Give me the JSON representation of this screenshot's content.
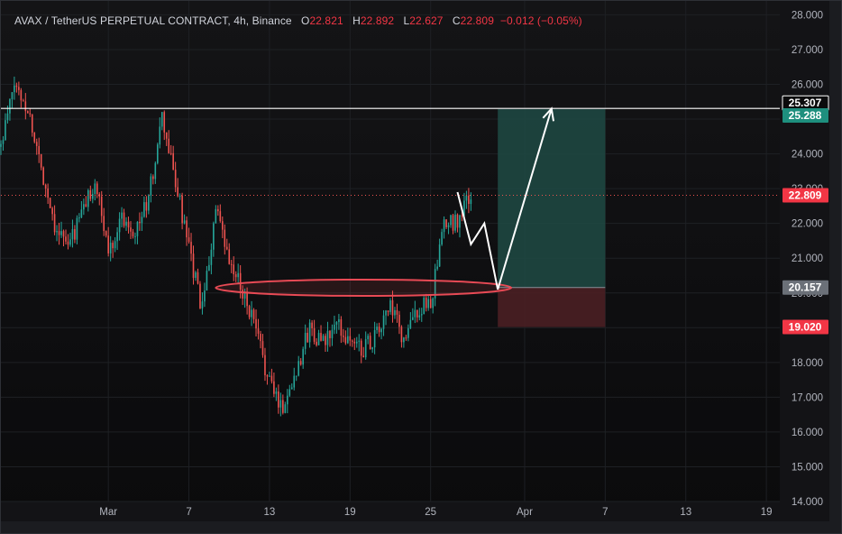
{
  "header": {
    "symbol": "AVAX / TetherUS PERPETUAL CONTRACT, 4h, Binance",
    "o_label": "O",
    "o_value": "22.821",
    "h_label": "H",
    "h_value": "22.892",
    "l_label": "L",
    "l_value": "22.627",
    "c_label": "C",
    "c_value": "22.809",
    "change": "−0.012 (−0.05%)"
  },
  "colors": {
    "up": "#26a69a",
    "down": "#ef5350",
    "target_zone": "#1f4a44",
    "stop_zone": "#4a1f24",
    "ellipse": "#e84a55",
    "resistance_line": "#ffffff",
    "projection": "#ffffff"
  },
  "chart_data": {
    "type": "candlestick",
    "ylim": [
      14.0,
      28.4
    ],
    "xlim": [
      "2024-02-22",
      "2024-04-20"
    ],
    "y_ticks": [
      "14.000",
      "15.000",
      "16.000",
      "17.000",
      "18.000",
      "19.000",
      "20.000",
      "21.000",
      "22.000",
      "23.000",
      "24.000",
      "25.000",
      "26.000",
      "27.000",
      "28.000"
    ],
    "x_ticks": [
      {
        "label": "Mar",
        "date": "2024-03-01"
      },
      {
        "label": "7",
        "date": "2024-03-07"
      },
      {
        "label": "13",
        "date": "2024-03-13"
      },
      {
        "label": "19",
        "date": "2024-03-19"
      },
      {
        "label": "25",
        "date": "2024-03-25"
      },
      {
        "label": "Apr",
        "date": "2024-04-01"
      },
      {
        "label": "7",
        "date": "2024-04-07"
      },
      {
        "label": "13",
        "date": "2024-04-13"
      },
      {
        "label": "19",
        "date": "2024-04-19"
      }
    ],
    "price_path": [
      [
        "2024-02-22",
        24.2
      ],
      [
        "2024-02-23",
        26.0
      ],
      [
        "2024-02-24",
        25.3
      ],
      [
        "2024-02-25",
        23.6
      ],
      [
        "2024-02-26",
        22.0
      ],
      [
        "2024-02-27",
        21.3
      ],
      [
        "2024-02-28",
        22.3
      ],
      [
        "2024-02-29",
        23.2
      ],
      [
        "2024-03-01",
        21.2
      ],
      [
        "2024-03-02",
        22.2
      ],
      [
        "2024-03-03",
        21.8
      ],
      [
        "2024-03-04",
        22.7
      ],
      [
        "2024-03-05",
        25.0
      ],
      [
        "2024-03-06",
        23.2
      ],
      [
        "2024-03-07",
        21.2
      ],
      [
        "2024-03-08",
        19.5
      ],
      [
        "2024-03-09",
        22.4
      ],
      [
        "2024-03-10",
        20.8
      ],
      [
        "2024-03-11",
        20.1
      ],
      [
        "2024-03-12",
        18.9
      ],
      [
        "2024-03-13",
        17.4
      ],
      [
        "2024-03-14",
        16.7
      ],
      [
        "2024-03-15",
        17.8
      ],
      [
        "2024-03-16",
        19.0
      ],
      [
        "2024-03-17",
        18.5
      ],
      [
        "2024-03-18",
        19.1
      ],
      [
        "2024-03-19",
        18.6
      ],
      [
        "2024-03-20",
        18.4
      ],
      [
        "2024-03-21",
        18.8
      ],
      [
        "2024-03-22",
        19.6
      ],
      [
        "2024-03-23",
        18.6
      ],
      [
        "2024-03-24",
        19.5
      ],
      [
        "2024-03-25",
        19.7
      ],
      [
        "2024-03-26",
        21.9
      ],
      [
        "2024-03-27",
        22.1
      ],
      [
        "2024-03-28",
        22.8
      ]
    ],
    "resistance_level": 25.307,
    "current_price": 22.809,
    "entry_level": 20.157,
    "stop_level": 19.02,
    "target_level": 25.288,
    "position_box": {
      "start": "2024-03-30",
      "end": "2024-04-07"
    },
    "support_zone": {
      "from": "2024-03-09",
      "to": "2024-03-31",
      "center": 20.15
    },
    "projection": [
      [
        "2024-03-27",
        22.9
      ],
      [
        "2024-03-28",
        21.4
      ],
      [
        "2024-03-29",
        22.0
      ],
      [
        "2024-03-30",
        20.1
      ],
      [
        "2024-04-03",
        25.3
      ]
    ],
    "price_labels": [
      {
        "text": "25.307",
        "value": 25.307,
        "style": "resistance"
      },
      {
        "text": "25.288",
        "value": 25.288,
        "style": "target"
      },
      {
        "text": "22.809",
        "value": 22.809,
        "style": "current"
      },
      {
        "text": "20.157",
        "value": 20.157,
        "style": "entry"
      },
      {
        "text": "19.020",
        "value": 19.02,
        "style": "stop"
      }
    ]
  }
}
